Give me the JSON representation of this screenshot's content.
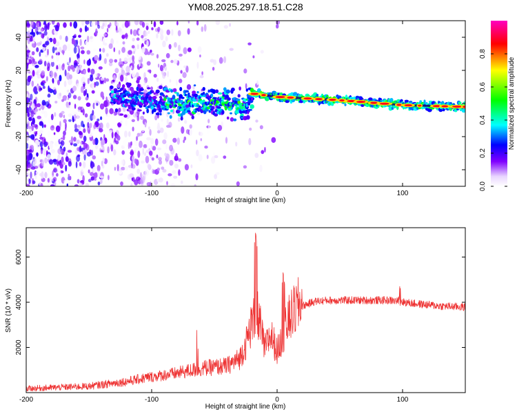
{
  "title": "YM08.2025.297.18.51.C28",
  "chart_data": [
    {
      "type": "heatmap",
      "name": "spectrogram",
      "xlabel": "Height of straight line (km)",
      "ylabel": "Frequency (Hz)",
      "xlim": [
        -200,
        150
      ],
      "ylim": [
        -50,
        50
      ],
      "xticks": [
        -200,
        -100,
        0,
        100
      ],
      "yticks": [
        -40,
        -20,
        0,
        20,
        40
      ],
      "colorbar": {
        "label": "Normalized spectral amplitude",
        "range": [
          0,
          1
        ],
        "ticks": [
          0.0,
          0.2,
          0.4,
          0.6,
          0.8
        ],
        "tick_labels": [
          "0.0",
          "0.2",
          "0.4",
          "0.6",
          "0.8"
        ],
        "colormap": [
          "#ffffff",
          "#e9d6ff",
          "#8000ff",
          "#0000ff",
          "#00ffff",
          "#00ff00",
          "#ffff00",
          "#ff0000",
          "#ff00c0"
        ]
      },
      "ridge": {
        "description": "dominant frequency band",
        "x": [
          -130,
          -100,
          -60,
          -40,
          -25,
          -20,
          0,
          50,
          100,
          150
        ],
        "y": [
          5,
          1,
          0,
          0,
          -2,
          6,
          4,
          2,
          -1,
          -2
        ]
      }
    },
    {
      "type": "line",
      "name": "snr",
      "xlabel": "Height of straight line (km)",
      "ylabel": "SNR (10 * v/v)",
      "xlim": [
        -200,
        150
      ],
      "ylim": [
        0,
        7300
      ],
      "xticks": [
        -200,
        -100,
        0,
        100
      ],
      "yticks": [
        2000,
        4000,
        6000
      ],
      "color": "#ee3333",
      "envelope": {
        "x": [
          -200,
          -150,
          -120,
          -100,
          -80,
          -60,
          -40,
          -30,
          -25,
          -20,
          -15,
          -10,
          -5,
          0,
          10,
          20,
          30,
          40,
          50,
          70,
          90,
          110,
          130,
          150
        ],
        "y": [
          150,
          250,
          450,
          650,
          800,
          1000,
          1100,
          1400,
          2000,
          2900,
          3200,
          1800,
          2400,
          1700,
          3100,
          3800,
          4000,
          4050,
          4050,
          4050,
          4050,
          3900,
          3800,
          3750
        ]
      },
      "spikes": [
        {
          "x": -64,
          "y": 2800
        },
        {
          "x": -17,
          "y": 7300
        },
        {
          "x": 5,
          "y": 5500
        },
        {
          "x": 98,
          "y": 4850
        }
      ]
    }
  ]
}
